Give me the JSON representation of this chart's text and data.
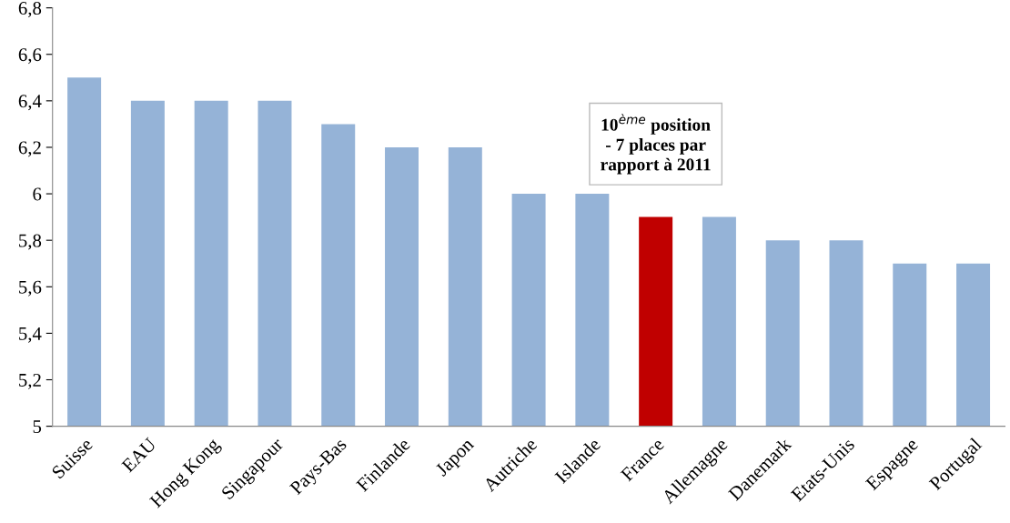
{
  "chart_data": {
    "type": "bar",
    "categories": [
      "Suisse",
      "EAU",
      "Hong Kong",
      "Singapour",
      "Pays-Bas",
      "Finlande",
      "Japon",
      "Autriche",
      "Islande",
      "France",
      "Allemagne",
      "Danemark",
      "Etats-Unis",
      "Espagne",
      "Portugal"
    ],
    "values": [
      6.5,
      6.4,
      6.4,
      6.4,
      6.3,
      6.2,
      6.2,
      6.0,
      6.0,
      5.9,
      5.9,
      5.8,
      5.8,
      5.7,
      5.7
    ],
    "colors": [
      "#95b3d7",
      "#95b3d7",
      "#95b3d7",
      "#95b3d7",
      "#95b3d7",
      "#95b3d7",
      "#95b3d7",
      "#95b3d7",
      "#95b3d7",
      "#c00000",
      "#95b3d7",
      "#95b3d7",
      "#95b3d7",
      "#95b3d7",
      "#95b3d7"
    ],
    "ylim": [
      5,
      6.8
    ],
    "yticks": [
      5,
      {
        "value": 5.2,
        "label": "5,2"
      },
      {
        "value": 5.4,
        "label": "5,4"
      },
      {
        "value": 5.6,
        "label": "5,6"
      },
      {
        "value": 5.8,
        "label": "5,8"
      },
      6,
      {
        "value": 6.2,
        "label": "6,2"
      },
      {
        "value": 6.4,
        "label": "6,4"
      },
      {
        "value": 6.6,
        "label": "6,6"
      },
      {
        "value": 6.8,
        "label": "6,8"
      }
    ],
    "grid": false,
    "annotations": [
      {
        "text": "10$^{ème}$ position\n- 7 places par\nrapport à 2011",
        "x": "France",
        "y": 5.9
      }
    ]
  }
}
